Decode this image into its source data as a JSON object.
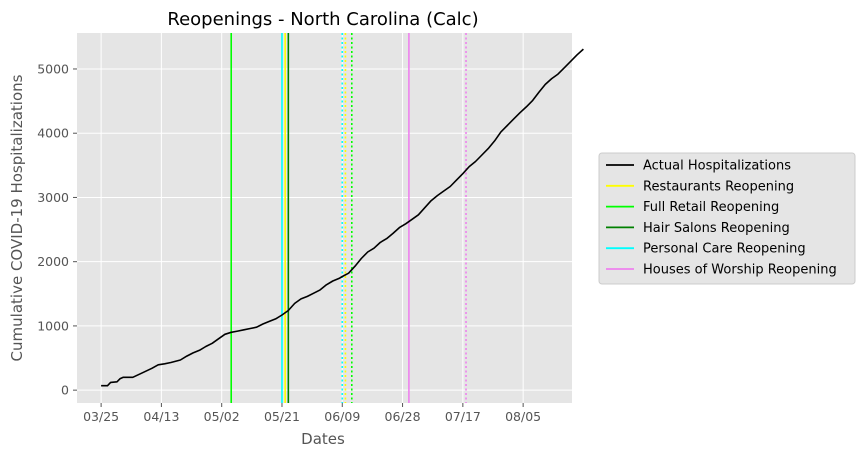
{
  "chart_data": {
    "type": "line",
    "title": "Reopenings - North Carolina (Calc)",
    "xlabel": "Dates",
    "ylabel": "Cumulative COVID-19 Hospitalizations",
    "x_start_date": "2020-03-25",
    "x_tick_labels": [
      "03/25",
      "04/13",
      "05/02",
      "05/21",
      "06/09",
      "06/28",
      "07/17",
      "08/05"
    ],
    "x_tick_days": [
      0,
      19,
      38,
      57,
      76,
      95,
      114,
      133
    ],
    "xlim_days": [
      -7.6,
      148.4
    ],
    "ylim": [
      -200,
      5560
    ],
    "y_ticks": [
      0,
      1000,
      2000,
      3000,
      4000,
      5000
    ],
    "grid": true,
    "background": "#e5e5e5",
    "legend_position": "right",
    "series": [
      {
        "name": "Actual Hospitalizations",
        "color": "#000000",
        "points": [
          [
            0,
            70
          ],
          [
            2,
            70
          ],
          [
            3,
            120
          ],
          [
            5,
            130
          ],
          [
            6,
            180
          ],
          [
            7,
            200
          ],
          [
            10,
            200
          ],
          [
            13,
            270
          ],
          [
            16,
            340
          ],
          [
            18,
            395
          ],
          [
            20,
            410
          ],
          [
            22,
            430
          ],
          [
            25,
            470
          ],
          [
            27,
            530
          ],
          [
            29,
            580
          ],
          [
            31,
            620
          ],
          [
            33,
            680
          ],
          [
            35,
            730
          ],
          [
            37,
            800
          ],
          [
            39,
            870
          ],
          [
            41,
            900
          ],
          [
            43,
            920
          ],
          [
            45,
            940
          ],
          [
            47,
            960
          ],
          [
            49,
            980
          ],
          [
            51,
            1030
          ],
          [
            53,
            1070
          ],
          [
            55,
            1110
          ],
          [
            57,
            1170
          ],
          [
            59,
            1240
          ],
          [
            61,
            1350
          ],
          [
            63,
            1420
          ],
          [
            65,
            1460
          ],
          [
            67,
            1510
          ],
          [
            69,
            1560
          ],
          [
            71,
            1640
          ],
          [
            73,
            1700
          ],
          [
            75,
            1740
          ],
          [
            76,
            1770
          ],
          [
            78,
            1820
          ],
          [
            80,
            1930
          ],
          [
            82,
            2050
          ],
          [
            84,
            2150
          ],
          [
            86,
            2210
          ],
          [
            88,
            2300
          ],
          [
            90,
            2360
          ],
          [
            92,
            2440
          ],
          [
            94,
            2530
          ],
          [
            96,
            2590
          ],
          [
            98,
            2660
          ],
          [
            100,
            2730
          ],
          [
            102,
            2840
          ],
          [
            104,
            2950
          ],
          [
            106,
            3030
          ],
          [
            108,
            3100
          ],
          [
            110,
            3170
          ],
          [
            112,
            3270
          ],
          [
            114,
            3370
          ],
          [
            116,
            3480
          ],
          [
            118,
            3560
          ],
          [
            120,
            3660
          ],
          [
            122,
            3760
          ],
          [
            124,
            3880
          ],
          [
            126,
            4020
          ],
          [
            128,
            4120
          ],
          [
            130,
            4220
          ],
          [
            132,
            4320
          ],
          [
            134,
            4410
          ],
          [
            136,
            4510
          ],
          [
            138,
            4640
          ],
          [
            140,
            4760
          ],
          [
            142,
            4850
          ],
          [
            144,
            4920
          ],
          [
            146,
            5020
          ],
          [
            148,
            5120
          ],
          [
            150,
            5220
          ],
          [
            152,
            5310
          ]
        ]
      }
    ],
    "reopenings": [
      {
        "name": "Restaurants Reopening",
        "color": "#ffff00",
        "solid_day": 58,
        "dotted_day": 77
      },
      {
        "name": "Full Retail Reopening",
        "color": "#00ff00",
        "solid_day": 41,
        "dotted_day": 79
      },
      {
        "name": "Hair Salons Reopening",
        "color": "#008000",
        "solid_day": 59,
        "dotted_day": null
      },
      {
        "name": "Personal Care Reopening",
        "color": "#00ffff",
        "solid_day": 57,
        "dotted_day": 76
      },
      {
        "name": "Houses of Worship Reopening",
        "color": "#ee82ee",
        "solid_day": 97,
        "dotted_day": 115
      }
    ],
    "legend": [
      {
        "label": "Actual Hospitalizations",
        "color": "#000000"
      },
      {
        "label": "Restaurants Reopening",
        "color": "#ffff00"
      },
      {
        "label": "Full Retail Reopening",
        "color": "#00ff00"
      },
      {
        "label": "Hair Salons Reopening",
        "color": "#008000"
      },
      {
        "label": "Personal Care Reopening",
        "color": "#00ffff"
      },
      {
        "label": "Houses of Worship Reopening",
        "color": "#ee82ee"
      }
    ]
  }
}
